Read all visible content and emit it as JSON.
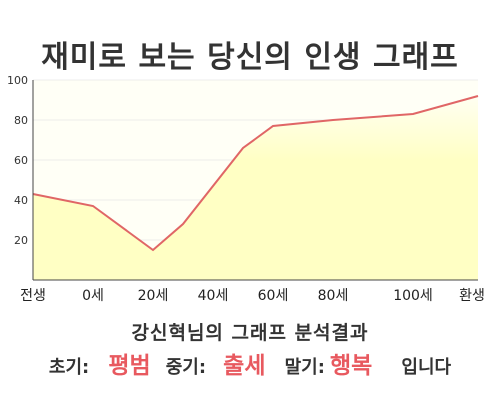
{
  "title": "재미로 보는 당신의 인생 그래프",
  "subtitle": "강신혁님의 그래프 분석결과",
  "result": {
    "early_label": "초기:",
    "early_value": "평범",
    "mid_label": "중기:",
    "mid_value": "출세",
    "late_label": "말기:",
    "late_value": "행복",
    "ending": "입니다"
  },
  "colors": {
    "line": "#e06666",
    "fill": "#ffffc4",
    "fill_top": "#fffff2",
    "highlight": "#e8595f",
    "axis": "#444444",
    "grid": "#dddddd"
  },
  "chart_data": {
    "type": "area",
    "title": "재미로 보는 당신의 인생 그래프",
    "xlabel": "",
    "ylabel": "",
    "x_tick_labels": [
      "전생",
      "0세",
      "20세",
      "40세",
      "60세",
      "80세",
      "100세",
      "환생"
    ],
    "y_ticks": [
      "20",
      "40",
      "60",
      "80",
      "100"
    ],
    "ylim": [
      0,
      100
    ],
    "grid": true,
    "series": [
      {
        "points": [
          {
            "x": "전생",
            "y": 43
          },
          {
            "x": "0세",
            "y": 37
          },
          {
            "x": "20세",
            "y": 15
          },
          {
            "x": "30세",
            "y": 28
          },
          {
            "x": "50세",
            "y": 66
          },
          {
            "x": "60세",
            "y": 77
          },
          {
            "x": "80세",
            "y": 80
          },
          {
            "x": "100세",
            "y": 83
          },
          {
            "x": "환생",
            "y": 92
          }
        ]
      }
    ]
  }
}
